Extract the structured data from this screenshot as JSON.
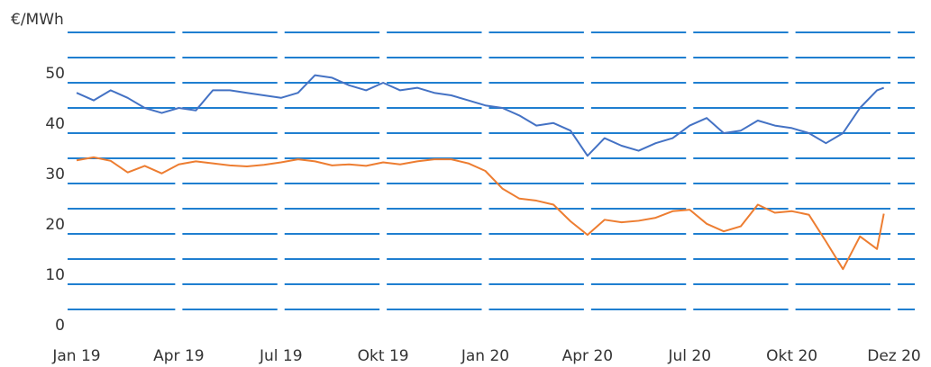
{
  "chart_data": {
    "type": "line",
    "y_label": "€/MWh",
    "x": [
      0,
      0.5,
      1,
      1.5,
      2,
      2.5,
      3,
      3.5,
      4,
      4.5,
      5,
      5.5,
      6,
      6.5,
      7,
      7.5,
      8,
      8.5,
      9,
      9.5,
      10,
      10.5,
      11,
      11.5,
      12,
      12.5,
      13,
      13.5,
      14,
      14.5,
      15,
      15.5,
      16,
      16.5,
      17,
      17.5,
      18,
      18.5,
      19,
      19.5,
      20,
      20.5,
      21,
      21.5,
      22,
      22.5,
      23,
      23.5,
      23.7
    ],
    "series": [
      {
        "color": "#4472c4",
        "values": [
          48,
          46.5,
          48.5,
          47,
          45,
          44,
          45,
          44.5,
          48.5,
          48.5,
          48,
          47.5,
          47,
          48,
          51.5,
          51,
          49.5,
          48.5,
          50,
          48.5,
          49,
          48,
          47.5,
          46.5,
          45.5,
          45,
          43.5,
          41.5,
          42,
          40.5,
          35.5,
          39,
          37.5,
          36.5,
          38,
          39,
          41.5,
          43,
          40,
          40.5,
          42.5,
          41.5,
          41,
          40,
          38,
          40,
          45,
          48.5,
          49
        ]
      },
      {
        "color": "#ed7d31",
        "values": [
          34.6,
          35.2,
          34.5,
          32.2,
          33.5,
          32,
          33.8,
          34.4,
          34,
          33.6,
          33.4,
          33.7,
          34.2,
          34.8,
          34.4,
          33.6,
          33.8,
          33.5,
          34.2,
          33.8,
          34.4,
          34.8,
          34.8,
          34,
          32.5,
          29,
          27,
          26.6,
          25.8,
          22.5,
          19.8,
          22.8,
          22.3,
          22.6,
          23.2,
          24.5,
          24.8,
          22,
          20.5,
          21.5,
          25.8,
          24.2,
          24.5,
          23.8,
          18.5,
          13,
          19.5,
          17,
          24
        ]
      }
    ],
    "xlim": [
      0,
      24
    ],
    "xticks": [
      {
        "value": 0,
        "label": "Jan 19"
      },
      {
        "value": 3,
        "label": "Apr 19"
      },
      {
        "value": 6,
        "label": "Jul 19"
      },
      {
        "value": 9,
        "label": "Okt 19"
      },
      {
        "value": 12,
        "label": "Jan 20"
      },
      {
        "value": 15,
        "label": "Apr 20"
      },
      {
        "value": 18,
        "label": "Jul 20"
      },
      {
        "value": 21,
        "label": "Okt 20"
      },
      {
        "value": 24,
        "label": "Dez 20"
      }
    ],
    "ylim": [
      0,
      60
    ],
    "yticks": [
      0,
      10,
      20,
      30,
      40,
      50
    ],
    "grid_lines": [
      5,
      10,
      15,
      20,
      25,
      30,
      35,
      40,
      45,
      50,
      55,
      60
    ],
    "grid_color": "#1f7fd0"
  }
}
